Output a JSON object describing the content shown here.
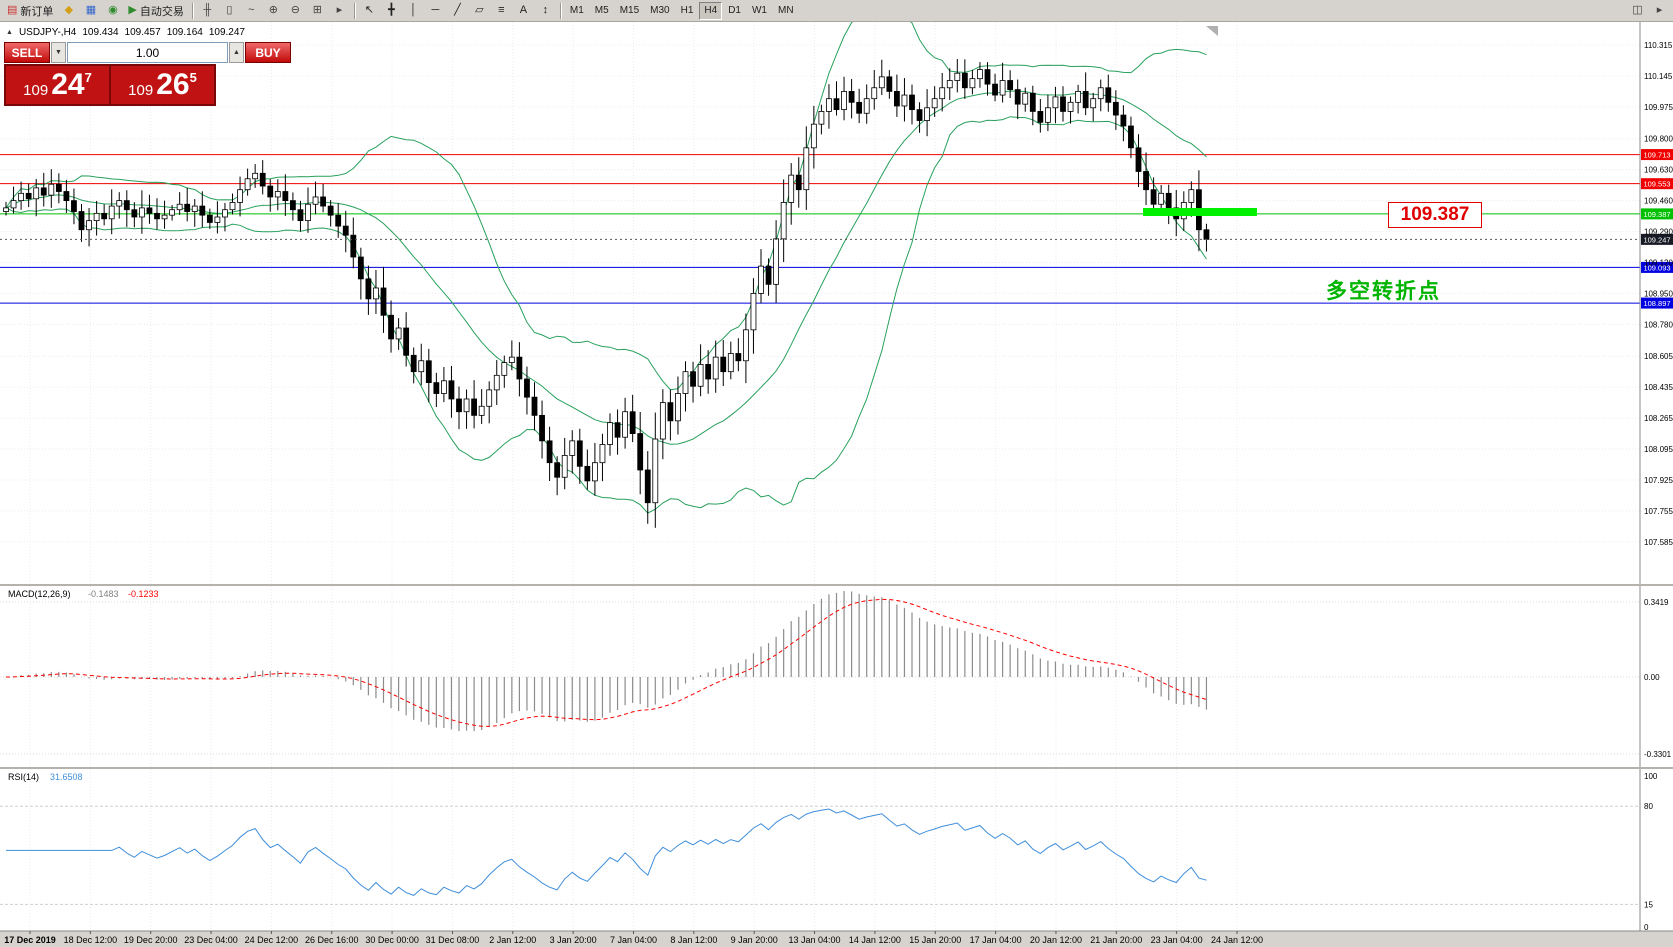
{
  "toolbar": {
    "buttons_left": [
      {
        "name": "new-order",
        "glyph": "▤",
        "color": "#cc3333",
        "label": "新订单"
      },
      {
        "name": "chart-profile",
        "glyph": "◆",
        "color": "#d4a017"
      },
      {
        "name": "market-watch",
        "glyph": "▦",
        "color": "#3366cc"
      },
      {
        "name": "navigator",
        "glyph": "◉",
        "color": "#2e8b2e"
      },
      {
        "name": "auto-trading",
        "glyph": "▶",
        "color": "#2e8b2e",
        "label": "自动交易"
      }
    ],
    "buttons_chart": [
      {
        "name": "bar-chart",
        "glyph": "╫",
        "color": "#444444"
      },
      {
        "name": "candlestick-chart",
        "glyph": "▯",
        "color": "#444444"
      },
      {
        "name": "line-chart",
        "glyph": "~",
        "color": "#444444"
      },
      {
        "name": "zoom-in",
        "glyph": "⊕",
        "color": "#444444"
      },
      {
        "name": "zoom-out",
        "glyph": "⊖",
        "color": "#444444"
      },
      {
        "name": "tile-windows",
        "glyph": "⊞",
        "color": "#444444"
      },
      {
        "name": "chart-shift",
        "glyph": "▸",
        "color": "#444444"
      }
    ],
    "buttons_tools": [
      {
        "name": "cursor",
        "glyph": "↖",
        "color": "#222222"
      },
      {
        "name": "crosshair",
        "glyph": "╋",
        "color": "#222222"
      },
      {
        "name": "vertical-line",
        "glyph": "│",
        "color": "#222222"
      },
      {
        "name": "horizontal-line",
        "glyph": "─",
        "color": "#222222"
      },
      {
        "name": "trendline",
        "glyph": "╱",
        "color": "#222222"
      },
      {
        "name": "equidistant-channel",
        "glyph": "▱",
        "color": "#222222"
      },
      {
        "name": "fibonacci",
        "glyph": "≡",
        "color": "#222222"
      },
      {
        "name": "text-label",
        "glyph": "A",
        "color": "#222222"
      },
      {
        "name": "arrows",
        "glyph": "↕",
        "color": "#222222"
      }
    ],
    "timeframes": [
      "M1",
      "M5",
      "M15",
      "M30",
      "H1",
      "H4",
      "D1",
      "W1",
      "MN"
    ],
    "active_timeframe": "H4",
    "buttons_right": [
      {
        "name": "data-window",
        "glyph": "◫",
        "color": "#444444"
      },
      {
        "name": "window-list",
        "glyph": "▸",
        "color": "#444444"
      }
    ]
  },
  "trade_panel": {
    "sell_label": "SELL",
    "buy_label": "BUY",
    "volume": "1.00",
    "spin_down_glyph": "▼",
    "spin_up_glyph": "▲",
    "bid": {
      "prefix": "109",
      "main": "24",
      "sup": "7"
    },
    "ask": {
      "prefix": "109",
      "main": "26",
      "sup": "5"
    }
  },
  "chart_header": {
    "collapse_glyph": "▲",
    "symbol": "USDJPY-,H4",
    "open": "109.434",
    "high": "109.457",
    "low": "109.164",
    "close": "109.247"
  },
  "annotations": {
    "price_box": "109.387",
    "turning_point": "多空转折点"
  },
  "colors": {
    "grid": "#ececec",
    "candle_up": "#ffffff",
    "candle_down": "#000000",
    "candle_line": "#000000",
    "bollinger": "#28a05c",
    "macd_hist": "#8c8c8c",
    "macd_signal": "#ff0000",
    "rsi_line": "#3f8edb",
    "level_red": "#f00000",
    "level_green": "#00c000",
    "level_blue": "#0000e0",
    "current_price_bg": "#171a24",
    "highlight_green": "#00f000",
    "axis_text": "#000000",
    "timeaxis_bg": "#d6d3ce"
  },
  "chart_data": {
    "type": "candlestick",
    "symbol": "USDJPY",
    "timeframe": "H4",
    "closes": [
      109.42,
      109.46,
      109.5,
      109.47,
      109.53,
      109.49,
      109.55,
      109.51,
      109.46,
      109.4,
      109.3,
      109.35,
      109.39,
      109.36,
      109.43,
      109.46,
      109.41,
      109.37,
      109.42,
      109.39,
      109.36,
      109.38,
      109.41,
      109.44,
      109.4,
      109.43,
      109.38,
      109.34,
      109.37,
      109.41,
      109.45,
      109.52,
      109.58,
      109.61,
      109.54,
      109.48,
      109.51,
      109.46,
      109.41,
      109.35,
      109.44,
      109.48,
      109.43,
      109.38,
      109.32,
      109.27,
      109.15,
      109.03,
      108.92,
      108.98,
      108.83,
      108.7,
      108.76,
      108.61,
      108.52,
      108.58,
      108.46,
      108.4,
      108.47,
      108.37,
      108.3,
      108.37,
      108.28,
      108.33,
      108.42,
      108.5,
      108.57,
      108.6,
      108.48,
      108.38,
      108.28,
      108.14,
      108.02,
      107.94,
      108.06,
      108.14,
      108.0,
      107.92,
      108.02,
      108.12,
      108.24,
      108.16,
      108.3,
      108.18,
      107.98,
      107.8,
      108.15,
      108.35,
      108.25,
      108.4,
      108.52,
      108.44,
      108.56,
      108.48,
      108.6,
      108.52,
      108.62,
      108.58,
      108.75,
      108.95,
      109.1,
      109.0,
      109.25,
      109.45,
      109.6,
      109.52,
      109.75,
      109.88,
      109.95,
      110.02,
      109.96,
      110.06,
      110.0,
      109.94,
      110.02,
      110.08,
      110.14,
      110.06,
      109.98,
      110.04,
      109.96,
      109.9,
      109.97,
      110.02,
      110.08,
      110.12,
      110.16,
      110.08,
      110.13,
      110.18,
      110.1,
      110.04,
      110.12,
      110.07,
      109.99,
      110.05,
      109.95,
      109.89,
      109.97,
      110.03,
      109.95,
      110.0,
      110.06,
      109.97,
      110.02,
      110.08,
      110.0,
      109.93,
      109.87,
      109.75,
      109.62,
      109.52,
      109.44,
      109.5,
      109.42,
      109.36,
      109.45,
      109.52,
      109.3,
      109.247
    ],
    "first_open": 109.4,
    "current_price": 109.247,
    "bollinger": {
      "period": 20,
      "deviation": 2
    },
    "levels": [
      {
        "price": 109.713,
        "color": "#f00000"
      },
      {
        "price": 109.553,
        "color": "#f00000"
      },
      {
        "price": 109.387,
        "color": "#00c000"
      },
      {
        "price": 109.093,
        "color": "#0000e0"
      },
      {
        "price": 108.897,
        "color": "#0000e0"
      }
    ],
    "axis_price_labels": [
      {
        "text": "109.713",
        "bg": "#f00000"
      },
      {
        "text": "109.553",
        "bg": "#f00000"
      },
      {
        "text": "109.387",
        "bg": "#00c000"
      },
      {
        "text": "109.247",
        "bg": "#171a24"
      },
      {
        "text": "109.093",
        "bg": "#0000e0"
      },
      {
        "text": "108.897",
        "bg": "#0000e0"
      }
    ],
    "y_ticks": [
      "110.315",
      "110.145",
      "109.975",
      "109.800",
      "109.630",
      "109.460",
      "109.290",
      "109.120",
      "108.950",
      "108.780",
      "108.605",
      "108.435",
      "108.265",
      "108.095",
      "107.925",
      "107.755",
      "107.585"
    ],
    "x_labels": [
      "17 Dec 2019",
      "18 Dec 12:00",
      "19 Dec 20:00",
      "23 Dec 04:00",
      "24 Dec 12:00",
      "26 Dec 16:00",
      "30 Dec 00:00",
      "31 Dec 08:00",
      "2 Jan 12:00",
      "3 Jan 20:00",
      "7 Jan 04:00",
      "8 Jan 12:00",
      "9 Jan 20:00",
      "13 Jan 04:00",
      "14 Jan 12:00",
      "15 Jan 20:00",
      "17 Jan 04:00",
      "20 Jan 12:00",
      "21 Jan 20:00",
      "23 Jan 04:00",
      "24 Jan 12:00"
    ],
    "indicators": [
      {
        "name": "MACD",
        "label": "MACD(12,26,9)",
        "value1": "-0.1483",
        "value2": "-0.1233",
        "axis": [
          "0.3419",
          "0.00",
          "-0.3301"
        ]
      },
      {
        "name": "RSI",
        "label": "RSI(14)",
        "value": "31.6508",
        "axis": [
          "100",
          "80",
          "15",
          "0"
        ],
        "levels": [
          80,
          15
        ]
      }
    ]
  }
}
